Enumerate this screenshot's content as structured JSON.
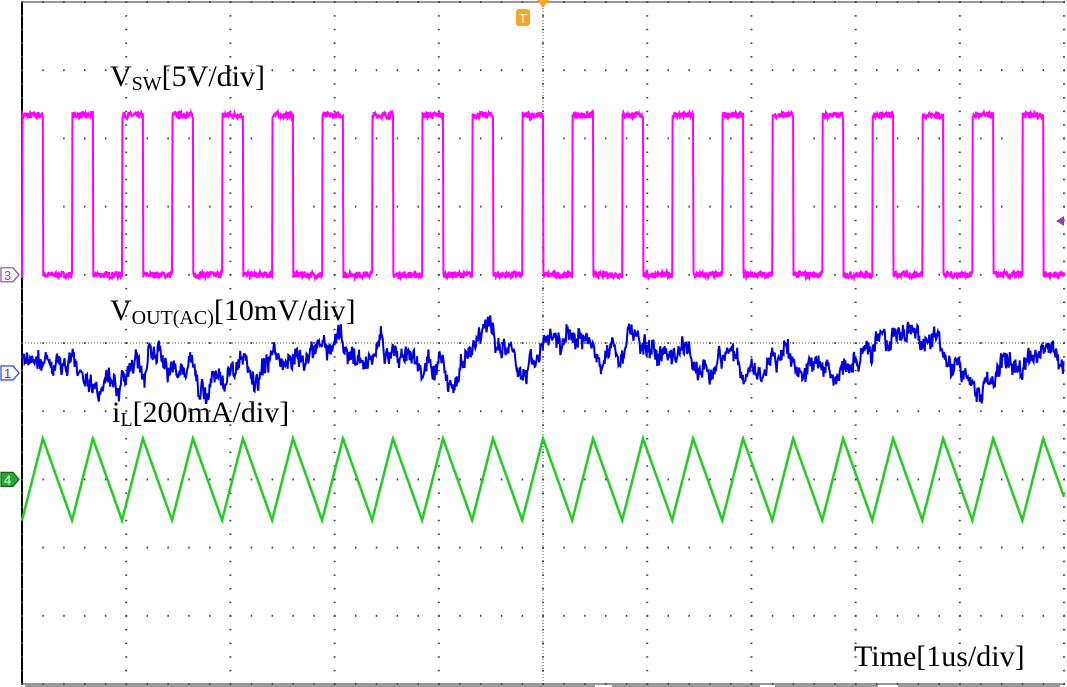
{
  "chart_data": {
    "type": "line",
    "title": "",
    "xlabel": "Time[1us/div]",
    "x_unit": "us",
    "xlim": [
      -5,
      5
    ],
    "grid": true,
    "horizontal_divisions": 10,
    "vertical_divisions": 10,
    "trigger": {
      "marker": "T",
      "time_us": 0,
      "channel": 3,
      "edge": "falling",
      "color": "#f5a623",
      "level_marker_color": "#8e44ad"
    },
    "series": [
      {
        "channel": "3",
        "label_main": "V",
        "label_sub": "SW",
        "label_scale": "[5V/div]",
        "color": "#ff00ff",
        "scale_per_div": 5,
        "unit": "V",
        "reference_div": 1,
        "low": 0,
        "high": 11.7,
        "period_us": 0.48,
        "high_time_us": 0.2,
        "falling_edge_at_us": 0
      },
      {
        "channel": "1",
        "label_main": "V",
        "label_sub": "OUT(AC)",
        "label_scale": "[10mV/div]",
        "color": "#0000dd",
        "scale_per_div": 10,
        "unit": "mV",
        "reference_div": -0.44,
        "mean": 2,
        "ripple_pp": 8
      },
      {
        "channel": "4",
        "label_main": "i",
        "label_sub": "L",
        "label_scale": "[200mA/div]",
        "color": "#22cc22",
        "scale_per_div": 200,
        "unit": "mA",
        "reference_div": -2,
        "ripple_pp": 240,
        "period_us": 0.48,
        "peak_at_us": 0
      }
    ]
  }
}
